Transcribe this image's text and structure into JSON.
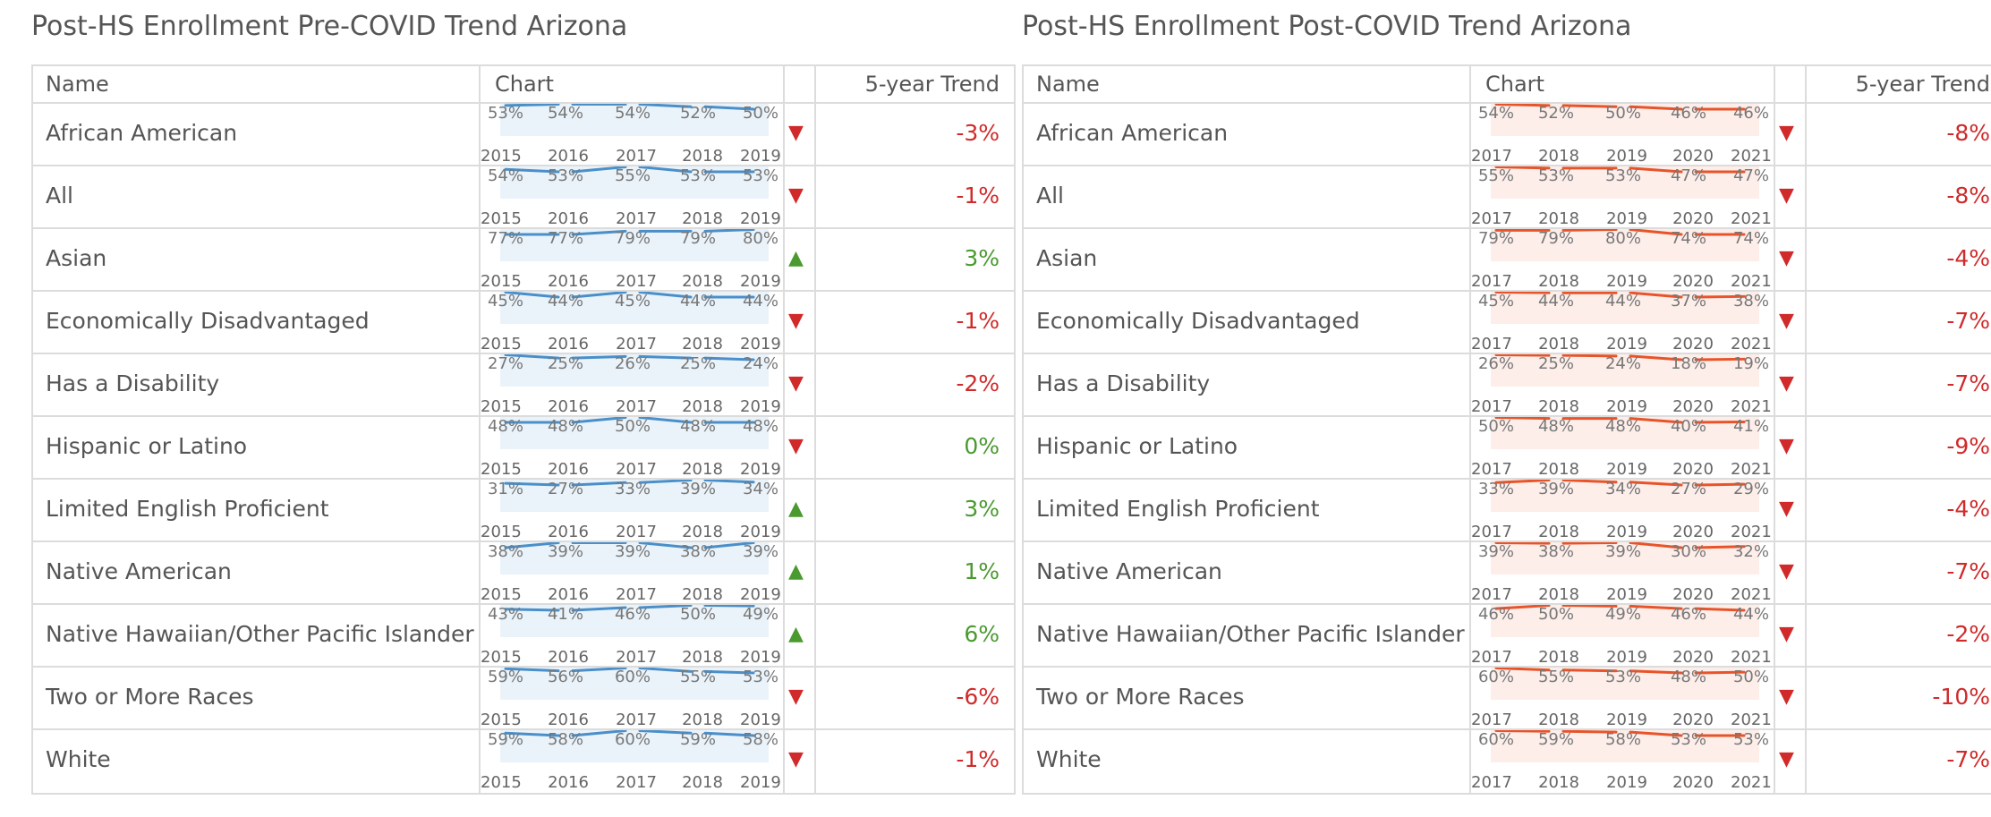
{
  "colors": {
    "up": "#4a9a2f",
    "down": "#d02a2a",
    "pre_line": "#4a8fc9",
    "pre_band": "#eaf3fa",
    "post_line": "#e8542a",
    "post_band": "#fdeeea",
    "text": "#555555",
    "border": "#dcdcdc"
  },
  "panels": [
    {
      "title": "Post-HS Enrollment Pre-COVID Trend Arizona",
      "headers": {
        "name": "Name",
        "chart": "Chart",
        "trend": "5-year Trend"
      },
      "years": [
        "2015",
        "2016",
        "2017",
        "2018",
        "2019"
      ],
      "color_key": "pre",
      "rows": [
        {
          "name": "African American",
          "values": [
            "53%",
            "54%",
            "54%",
            "52%",
            "50%"
          ],
          "direction": "down",
          "arrow": "▼",
          "trend": "-3%"
        },
        {
          "name": "All",
          "values": [
            "54%",
            "53%",
            "55%",
            "53%",
            "53%"
          ],
          "direction": "down",
          "arrow": "▼",
          "trend": "-1%"
        },
        {
          "name": "Asian",
          "values": [
            "77%",
            "77%",
            "79%",
            "79%",
            "80%"
          ],
          "direction": "up",
          "arrow": "▲",
          "trend": "3%"
        },
        {
          "name": "Economically Disadvantaged",
          "values": [
            "45%",
            "44%",
            "45%",
            "44%",
            "44%"
          ],
          "direction": "down",
          "arrow": "▼",
          "trend": "-1%"
        },
        {
          "name": "Has a Disability",
          "values": [
            "27%",
            "25%",
            "26%",
            "25%",
            "24%"
          ],
          "direction": "down",
          "arrow": "▼",
          "trend": "-2%"
        },
        {
          "name": "Hispanic or Latino",
          "values": [
            "48%",
            "48%",
            "50%",
            "48%",
            "48%"
          ],
          "direction": "down",
          "arrow": "▼",
          "trend": "0%",
          "trend_color": "up"
        },
        {
          "name": "Limited English Proficient",
          "values": [
            "31%",
            "27%",
            "33%",
            "39%",
            "34%"
          ],
          "direction": "up",
          "arrow": "▲",
          "trend": "3%"
        },
        {
          "name": "Native American",
          "values": [
            "38%",
            "39%",
            "39%",
            "38%",
            "39%"
          ],
          "direction": "up",
          "arrow": "▲",
          "trend": "1%"
        },
        {
          "name": "Native Hawaiian/Other Pacific Islander",
          "values": [
            "43%",
            "41%",
            "46%",
            "50%",
            "49%"
          ],
          "direction": "up",
          "arrow": "▲",
          "trend": "6%"
        },
        {
          "name": "Two or More Races",
          "values": [
            "59%",
            "56%",
            "60%",
            "55%",
            "53%"
          ],
          "direction": "down",
          "arrow": "▼",
          "trend": "-6%"
        },
        {
          "name": "White",
          "values": [
            "59%",
            "58%",
            "60%",
            "59%",
            "58%"
          ],
          "direction": "down",
          "arrow": "▼",
          "trend": "-1%"
        }
      ]
    },
    {
      "title": "Post-HS Enrollment Post-COVID Trend Arizona",
      "headers": {
        "name": "Name",
        "chart": "Chart",
        "trend": "5-year Trend"
      },
      "years": [
        "2017",
        "2018",
        "2019",
        "2020",
        "2021"
      ],
      "color_key": "post",
      "rows": [
        {
          "name": "African American",
          "values": [
            "54%",
            "52%",
            "50%",
            "46%",
            "46%"
          ],
          "direction": "down",
          "arrow": "▼",
          "trend": "-8%"
        },
        {
          "name": "All",
          "values": [
            "55%",
            "53%",
            "53%",
            "47%",
            "47%"
          ],
          "direction": "down",
          "arrow": "▼",
          "trend": "-8%"
        },
        {
          "name": "Asian",
          "values": [
            "79%",
            "79%",
            "80%",
            "74%",
            "74%"
          ],
          "direction": "down",
          "arrow": "▼",
          "trend": "-4%"
        },
        {
          "name": "Economically Disadvantaged",
          "values": [
            "45%",
            "44%",
            "44%",
            "37%",
            "38%"
          ],
          "direction": "down",
          "arrow": "▼",
          "trend": "-7%"
        },
        {
          "name": "Has a Disability",
          "values": [
            "26%",
            "25%",
            "24%",
            "18%",
            "19%"
          ],
          "direction": "down",
          "arrow": "▼",
          "trend": "-7%"
        },
        {
          "name": "Hispanic or Latino",
          "values": [
            "50%",
            "48%",
            "48%",
            "40%",
            "41%"
          ],
          "direction": "down",
          "arrow": "▼",
          "trend": "-9%"
        },
        {
          "name": "Limited English Proficient",
          "values": [
            "33%",
            "39%",
            "34%",
            "27%",
            "29%"
          ],
          "direction": "down",
          "arrow": "▼",
          "trend": "-4%"
        },
        {
          "name": "Native American",
          "values": [
            "39%",
            "38%",
            "39%",
            "30%",
            "32%"
          ],
          "direction": "down",
          "arrow": "▼",
          "trend": "-7%"
        },
        {
          "name": "Native Hawaiian/Other Pacific Islander",
          "values": [
            "46%",
            "50%",
            "49%",
            "46%",
            "44%"
          ],
          "direction": "down",
          "arrow": "▼",
          "trend": "-2%"
        },
        {
          "name": "Two or More Races",
          "values": [
            "60%",
            "55%",
            "53%",
            "48%",
            "50%"
          ],
          "direction": "down",
          "arrow": "▼",
          "trend": "-10%"
        },
        {
          "name": "White",
          "values": [
            "60%",
            "59%",
            "58%",
            "53%",
            "53%"
          ],
          "direction": "down",
          "arrow": "▼",
          "trend": "-7%"
        }
      ]
    }
  ],
  "chart_data": [
    {
      "type": "line",
      "title": "Post-HS Enrollment Pre-COVID Trend Arizona",
      "x": [
        2015,
        2016,
        2017,
        2018,
        2019
      ],
      "series": [
        {
          "name": "African American",
          "values": [
            53,
            54,
            54,
            52,
            50
          ]
        },
        {
          "name": "All",
          "values": [
            54,
            53,
            55,
            53,
            53
          ]
        },
        {
          "name": "Asian",
          "values": [
            77,
            77,
            79,
            79,
            80
          ]
        },
        {
          "name": "Economically Disadvantaged",
          "values": [
            45,
            44,
            45,
            44,
            44
          ]
        },
        {
          "name": "Has a Disability",
          "values": [
            27,
            25,
            26,
            25,
            24
          ]
        },
        {
          "name": "Hispanic or Latino",
          "values": [
            48,
            48,
            50,
            48,
            48
          ]
        },
        {
          "name": "Limited English Proficient",
          "values": [
            31,
            27,
            33,
            39,
            34
          ]
        },
        {
          "name": "Native American",
          "values": [
            38,
            39,
            39,
            38,
            39
          ]
        },
        {
          "name": "Native Hawaiian/Other Pacific Islander",
          "values": [
            43,
            41,
            46,
            50,
            49
          ]
        },
        {
          "name": "Two or More Races",
          "values": [
            59,
            56,
            60,
            55,
            53
          ]
        },
        {
          "name": "White",
          "values": [
            59,
            58,
            60,
            59,
            58
          ]
        }
      ]
    },
    {
      "type": "line",
      "title": "Post-HS Enrollment Post-COVID Trend Arizona",
      "x": [
        2017,
        2018,
        2019,
        2020,
        2021
      ],
      "series": [
        {
          "name": "African American",
          "values": [
            54,
            52,
            50,
            46,
            46
          ]
        },
        {
          "name": "All",
          "values": [
            55,
            53,
            53,
            47,
            47
          ]
        },
        {
          "name": "Asian",
          "values": [
            79,
            79,
            80,
            74,
            74
          ]
        },
        {
          "name": "Economically Disadvantaged",
          "values": [
            45,
            44,
            44,
            37,
            38
          ]
        },
        {
          "name": "Has a Disability",
          "values": [
            26,
            25,
            24,
            18,
            19
          ]
        },
        {
          "name": "Hispanic or Latino",
          "values": [
            50,
            48,
            48,
            40,
            41
          ]
        },
        {
          "name": "Limited English Proficient",
          "values": [
            33,
            39,
            34,
            27,
            29
          ]
        },
        {
          "name": "Native American",
          "values": [
            39,
            38,
            39,
            30,
            32
          ]
        },
        {
          "name": "Native Hawaiian/Other Pacific Islander",
          "values": [
            46,
            50,
            49,
            46,
            44
          ]
        },
        {
          "name": "Two or More Races",
          "values": [
            60,
            55,
            53,
            48,
            50
          ]
        },
        {
          "name": "White",
          "values": [
            60,
            59,
            58,
            53,
            53
          ]
        }
      ]
    }
  ]
}
